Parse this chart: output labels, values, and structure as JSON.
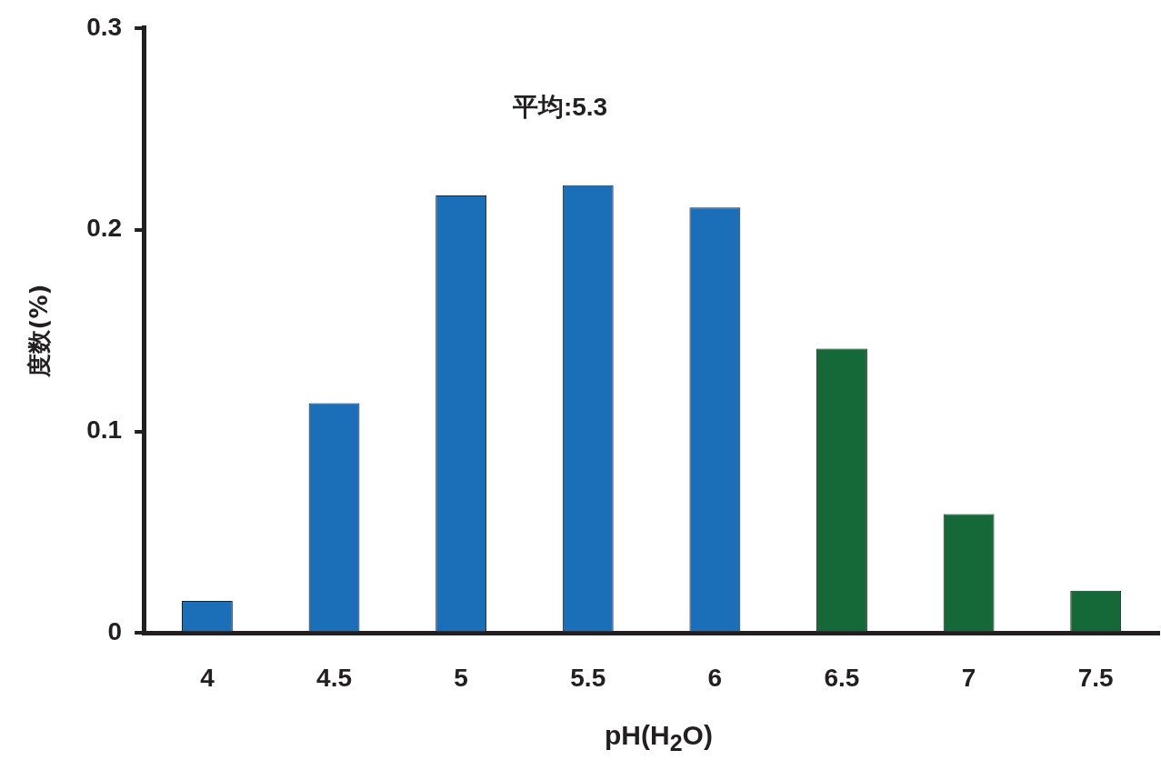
{
  "chart_data": {
    "type": "bar",
    "xlabel": "pH(H$_{2}$O)",
    "ylabel": "度数(%)",
    "categories": [
      "4",
      "4.5",
      "5",
      "5.5",
      "6",
      "6.5",
      "7",
      "7.5"
    ],
    "values": [
      0.016,
      0.114,
      0.217,
      0.222,
      0.211,
      0.141,
      0.059,
      0.021
    ],
    "colors": [
      "#1b6fb8",
      "#1b6fb8",
      "#1b6fb8",
      "#1b6fb8",
      "#1b6fb8",
      "#156938",
      "#156938",
      "#156938"
    ],
    "ylim": [
      0,
      0.3
    ],
    "yticks": [
      0,
      0.1,
      0.2,
      0.3
    ],
    "annotations": [
      "平均:5.3"
    ]
  }
}
